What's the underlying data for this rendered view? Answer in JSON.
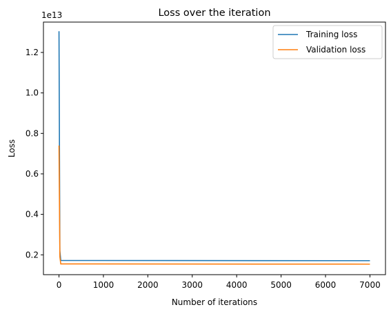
{
  "chart_data": {
    "type": "line",
    "title": "Loss over the iteration",
    "xlabel": "Number of iterations",
    "ylabel": "Loss",
    "y_offset_label": "1e13",
    "y_scale_factor": 10000000000000.0,
    "xlim": [
      -350,
      7350
    ],
    "ylim": [
      1.02,
      13.5
    ],
    "x_ticks": [
      0,
      1000,
      2000,
      3000,
      4000,
      5000,
      6000,
      7000
    ],
    "x_tick_labels": [
      "0",
      "1000",
      "2000",
      "3000",
      "4000",
      "5000",
      "6000",
      "7000"
    ],
    "y_ticks": [
      2,
      4,
      6,
      8,
      10,
      12
    ],
    "y_tick_labels": [
      "0.2",
      "0.4",
      "0.6",
      "0.8",
      "1.0",
      "1.2"
    ],
    "grid": false,
    "legend_position": "top-right",
    "series": [
      {
        "name": "Training loss",
        "color": "#1f77b4",
        "x": [
          0,
          20,
          40,
          7000
        ],
        "y": [
          13.05,
          2.2,
          1.72,
          1.71
        ]
      },
      {
        "name": "Validation loss",
        "color": "#ff7f0e",
        "x": [
          0,
          20,
          40,
          7000
        ],
        "y": [
          7.4,
          1.9,
          1.55,
          1.54
        ]
      }
    ]
  }
}
